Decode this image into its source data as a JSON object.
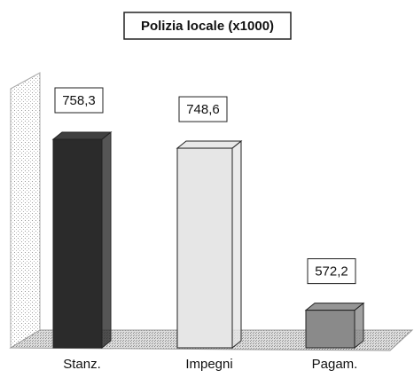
{
  "chart_data": {
    "type": "bar3d",
    "title": "Polizia locale (x1000)",
    "categories": [
      "Stanz.",
      "Impegni",
      "Pagam."
    ],
    "values": [
      758.3,
      748.6,
      572.2
    ],
    "value_labels": [
      "758,3",
      "748,6",
      "572,2"
    ],
    "colors": [
      "#2b2b2b",
      "#e6e6e6",
      "#8a8a8a"
    ]
  }
}
